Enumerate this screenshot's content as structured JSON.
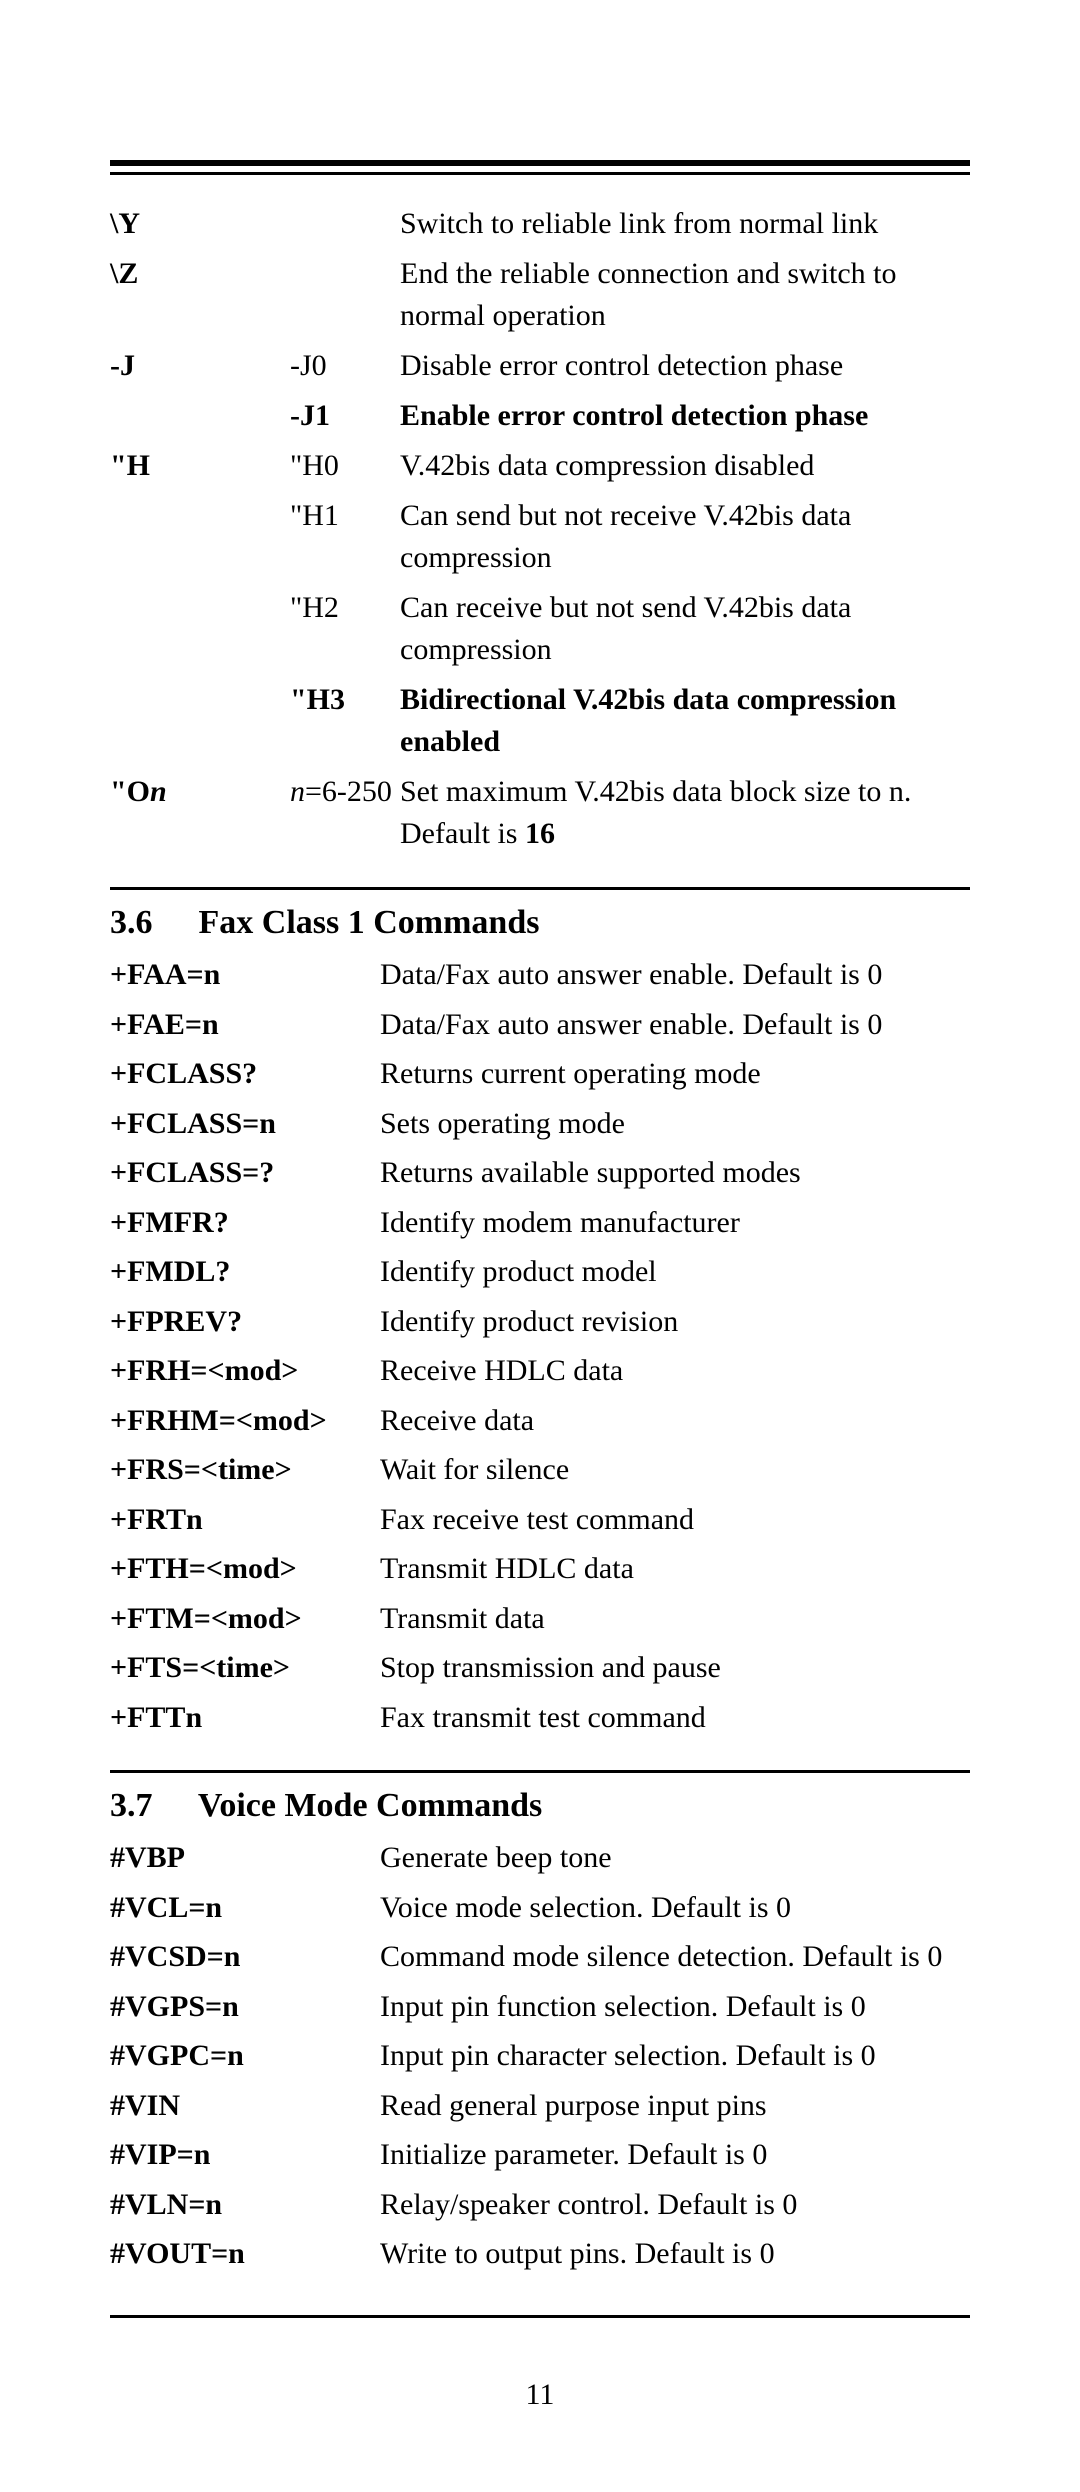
{
  "page_number": "11",
  "section1": {
    "rows": [
      {
        "a": "\\Y",
        "b": "",
        "c": "Switch to reliable link from normal link",
        "bold": false
      },
      {
        "a": "\\Z",
        "b": "",
        "c": "End the reliable connection and switch to normal operation",
        "bold": false
      },
      {
        "a": "-J",
        "b": "-J0",
        "c": "Disable error control detection phase",
        "bold": false
      },
      {
        "a": "",
        "b": "-J1",
        "c": "Enable error control detection phase",
        "bold": true
      },
      {
        "a": "\"H",
        "b": "\"H0",
        "c": "V.42bis data compression disabled",
        "bold": false
      },
      {
        "a": "",
        "b": "\"H1",
        "c": "Can send but not receive V.42bis data compression",
        "bold": false
      },
      {
        "a": "",
        "b": "\"H2",
        "c": "Can receive but not send V.42bis data compression",
        "bold": false
      },
      {
        "a": "",
        "b": "\"H3",
        "c": "Bidirectional V.42bis data compression enabled",
        "bold": true
      }
    ],
    "on_row": {
      "a_pre": "\"O",
      "a_italic": "n",
      "b_pre": "n",
      "b_rest": "=6-250",
      "c_pre": "Set maximum V.42bis data block size to n. Default is ",
      "c_bold": "16"
    }
  },
  "section_fax": {
    "num": "3.6",
    "title": "Fax Class 1 Commands",
    "rows": [
      {
        "a": "+FAA=n",
        "b": "Data/Fax auto answer enable. Default is 0"
      },
      {
        "a": "+FAE=n",
        "b": "Data/Fax auto answer enable. Default is 0"
      },
      {
        "a": "+FCLASS?",
        "b": "Returns current operating mode"
      },
      {
        "a": "+FCLASS=n",
        "b": "Sets operating mode"
      },
      {
        "a": "+FCLASS=?",
        "b": "Returns  available supported modes"
      },
      {
        "a": "+FMFR?",
        "b": "Identify modem manufacturer"
      },
      {
        "a": "+FMDL?",
        "b": "Identify product model"
      },
      {
        "a": "+FPREV?",
        "b": "Identify product revision"
      },
      {
        "a": "+FRH=<mod>",
        "b": "Receive HDLC data"
      },
      {
        "a": "+FRHM=<mod>",
        "b": "Receive data"
      },
      {
        "a": "+FRS=<time>",
        "b": "Wait for silence"
      },
      {
        "a": "+FRTn",
        "b": "Fax receive test command"
      },
      {
        "a": "+FTH=<mod>",
        "b": "Transmit HDLC data"
      },
      {
        "a": "+FTM=<mod>",
        "b": "Transmit data"
      },
      {
        "a": "+FTS=<time>",
        "b": "Stop transmission and pause"
      },
      {
        "a": "+FTTn",
        "b": "Fax transmit test command"
      }
    ]
  },
  "section_voice": {
    "num": "3.7",
    "title": "Voice Mode Commands",
    "rows": [
      {
        "a": "#VBP",
        "b": "Generate beep tone"
      },
      {
        "a": "#VCL=n",
        "b": "Voice mode selection. Default is 0"
      },
      {
        "a": "#VCSD=n",
        "b": "Command mode silence detection. Default is 0"
      },
      {
        "a": "#VGPS=n",
        "b": "Input pin function selection. Default is 0"
      },
      {
        "a": "#VGPC=n",
        "b": "Input pin character selection. Default is 0"
      },
      {
        "a": "#VIN",
        "b": "Read general purpose input pins"
      },
      {
        "a": "#VIP=n",
        "b": "Initialize parameter. Default is 0"
      },
      {
        "a": "#VLN=n",
        "b": "Relay/speaker control. Default is 0"
      },
      {
        "a": "#VOUT=n",
        "b": "Write to output pins. Default is 0"
      }
    ]
  }
}
